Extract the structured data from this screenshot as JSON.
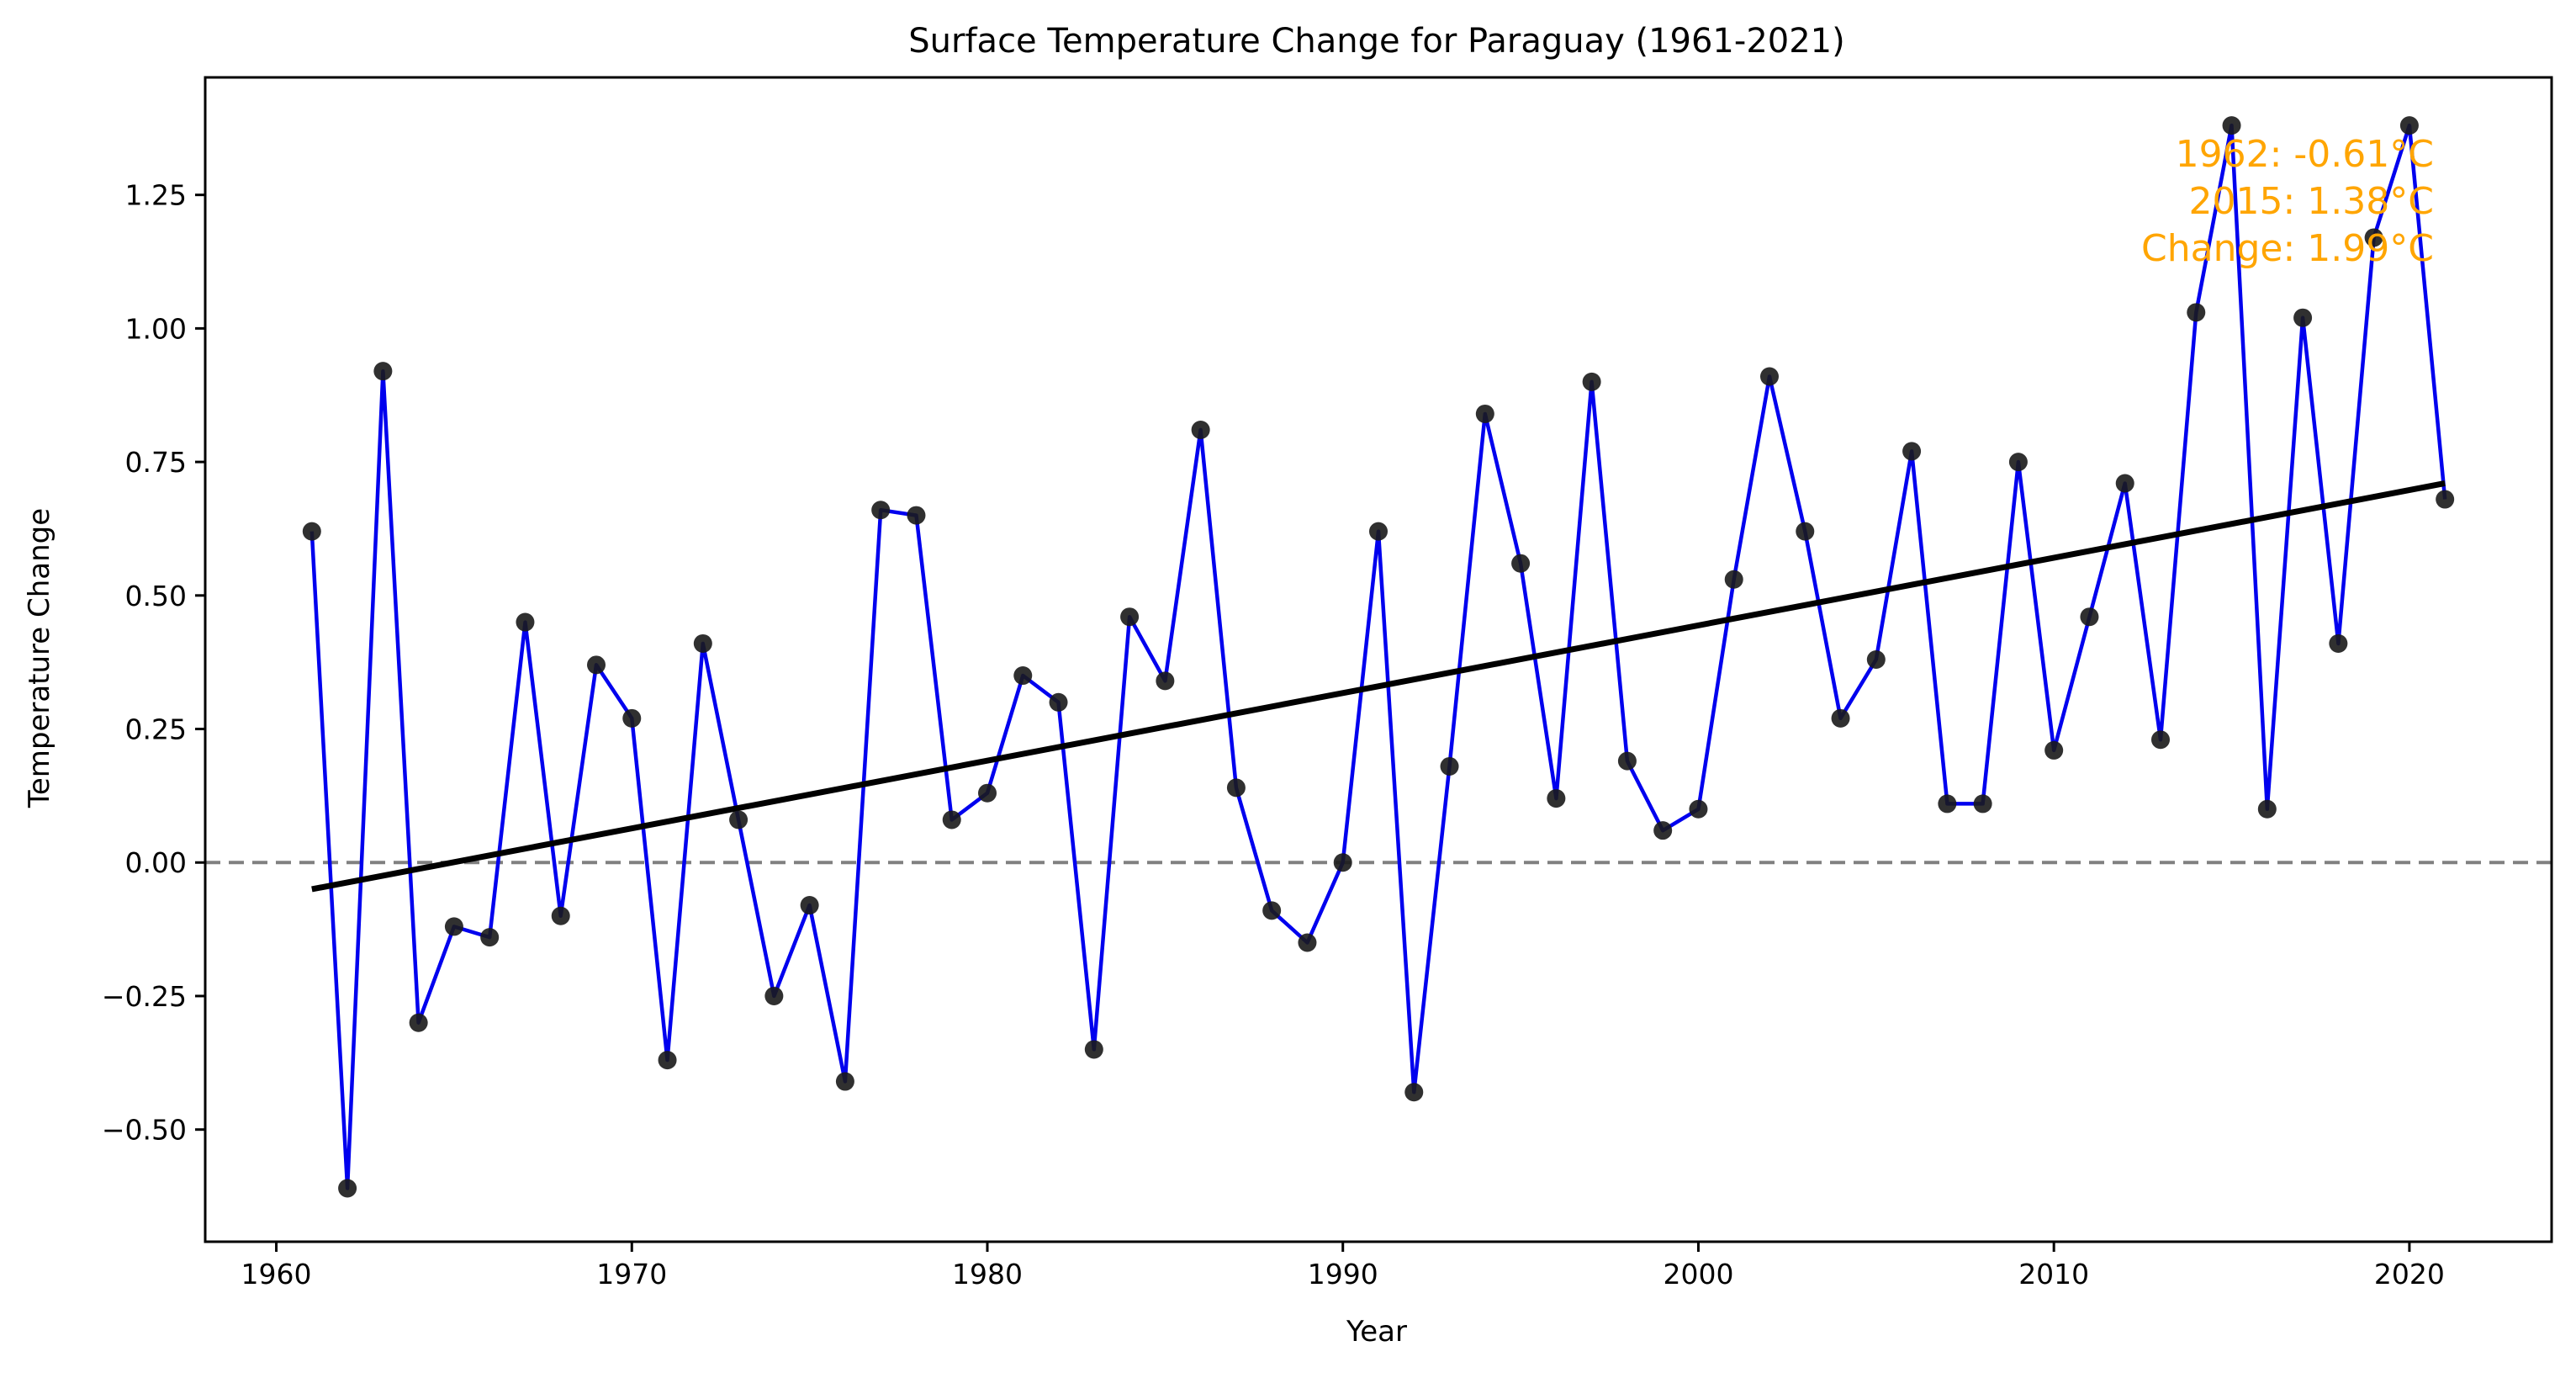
{
  "chart_data": {
    "type": "line",
    "title": "Surface Temperature Change for Paraguay (1961-2021)",
    "xlabel": "Year",
    "ylabel": "Temperature Change",
    "xlim": [
      1958.0,
      2024.0
    ],
    "ylim": [
      -0.71,
      1.47
    ],
    "xticks": [
      1960,
      1970,
      1980,
      1990,
      2000,
      2010,
      2020
    ],
    "yticks": [
      -0.5,
      -0.25,
      0.0,
      0.25,
      0.5,
      0.75,
      1.0,
      1.25
    ],
    "ytick_labels": [
      "−0.50",
      "−0.25",
      "0.00",
      "0.25",
      "0.50",
      "0.75",
      "1.00",
      "1.25"
    ],
    "grid": false,
    "series": [
      {
        "x": [
          1961,
          1962,
          1963,
          1964,
          1965,
          1966,
          1967,
          1968,
          1969,
          1970,
          1971,
          1972,
          1973,
          1974,
          1975,
          1976,
          1977,
          1978,
          1979,
          1980,
          1981,
          1982,
          1983,
          1984,
          1985,
          1986,
          1987,
          1988,
          1989,
          1990,
          1991,
          1992,
          1993,
          1994,
          1995,
          1996,
          1997,
          1998,
          1999,
          2000,
          2001,
          2002,
          2003,
          2004,
          2005,
          2006,
          2007,
          2008,
          2009,
          2010,
          2011,
          2012,
          2013,
          2014,
          2015,
          2016,
          2017,
          2018,
          2019,
          2020,
          2021
        ],
        "values": [
          0.62,
          -0.61,
          0.92,
          -0.3,
          -0.12,
          -0.14,
          0.45,
          -0.1,
          0.37,
          0.27,
          -0.37,
          0.41,
          0.08,
          -0.25,
          -0.08,
          -0.41,
          0.66,
          0.65,
          0.08,
          0.13,
          0.35,
          0.3,
          -0.35,
          0.46,
          0.34,
          0.81,
          0.14,
          -0.09,
          -0.15,
          0.0,
          0.62,
          -0.43,
          0.18,
          0.84,
          0.56,
          0.12,
          0.9,
          0.19,
          0.06,
          0.1,
          0.53,
          0.91,
          0.62,
          0.27,
          0.38,
          0.77,
          0.11,
          0.11,
          0.75,
          0.21,
          0.46,
          0.71,
          0.23,
          1.03,
          1.38,
          0.1,
          1.02,
          0.41,
          1.17,
          1.38,
          0.68
        ],
        "line_color": "#0000ee",
        "marker_color": "#1a1a1a"
      }
    ],
    "trend_line": {
      "x": [
        1961,
        2021
      ],
      "y": [
        -0.05,
        0.71
      ],
      "color": "#000000"
    },
    "reference_line": {
      "y": 0.0,
      "style": "dashed",
      "color": "#808080"
    },
    "annotation": {
      "lines": [
        "1962: -0.61°C",
        "2015: 1.38°C",
        "Change: 1.99°C"
      ],
      "color": "#ffa500",
      "placement": "top-right"
    }
  }
}
